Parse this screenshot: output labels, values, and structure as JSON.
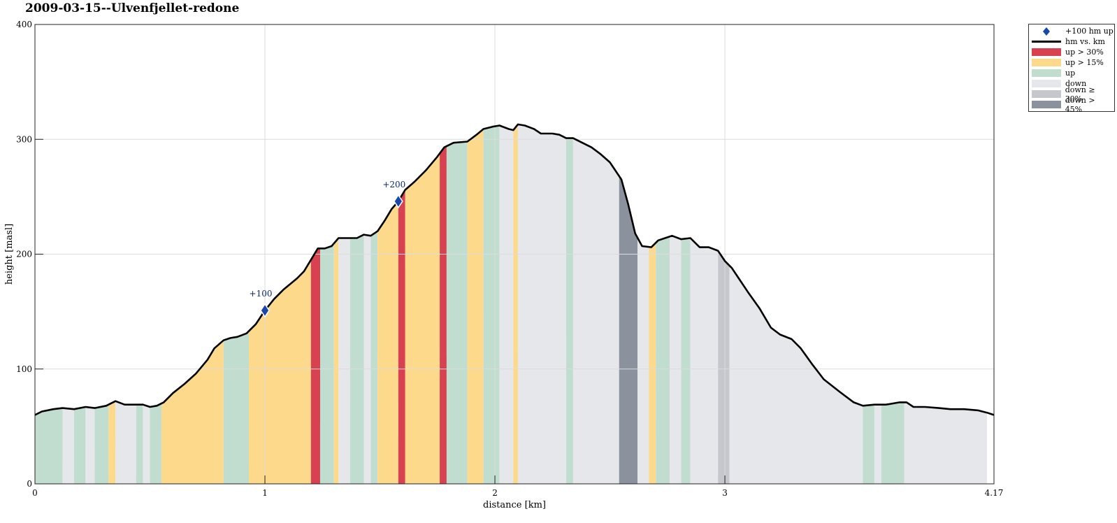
{
  "title": "2009-03-15--Ulvenfjellet-redone",
  "chart_data": {
    "type": "area",
    "title": "2009-03-15--Ulvenfjellet-redone",
    "xlabel": "distance [km]",
    "ylabel": "height [masl]",
    "xlim": [
      0,
      4.17
    ],
    "ylim": [
      0,
      400
    ],
    "xticks": [
      0,
      1,
      2,
      3,
      4.17
    ],
    "xtick_labels": [
      "0",
      "1",
      "2",
      "3",
      "4.17"
    ],
    "yticks": [
      0,
      100,
      200,
      300,
      400
    ],
    "ytick_labels": [
      "0",
      "100",
      "200",
      "300",
      "400"
    ],
    "grid": true,
    "legend_position": "outside top-right",
    "legend": [
      {
        "key": "marker",
        "label": "+100 hm up",
        "color": "#1548a8"
      },
      {
        "key": "line",
        "label": "hm vs. km",
        "color": "#000000"
      },
      {
        "key": "up30",
        "label": "up > 30%",
        "color": "#d8414f"
      },
      {
        "key": "up15",
        "label": "up > 15%",
        "color": "#fdd98b"
      },
      {
        "key": "up",
        "label": "up",
        "color": "#c1ddcf"
      },
      {
        "key": "down",
        "label": "down",
        "color": "#e6e7ea"
      },
      {
        "key": "down30",
        "label": "down ≥ 30%",
        "color": "#c5c7cd"
      },
      {
        "key": "down45",
        "label": "down > 45%",
        "color": "#8c919e"
      }
    ],
    "profile": [
      [
        0,
        60
      ],
      [
        0.03,
        63
      ],
      [
        0.08,
        65
      ],
      [
        0.12,
        66
      ],
      [
        0.17,
        65
      ],
      [
        0.22,
        67
      ],
      [
        0.26,
        66
      ],
      [
        0.31,
        68
      ],
      [
        0.35,
        72
      ],
      [
        0.39,
        69
      ],
      [
        0.42,
        69
      ],
      [
        0.47,
        69
      ],
      [
        0.5,
        67
      ],
      [
        0.53,
        68
      ],
      [
        0.56,
        71
      ],
      [
        0.6,
        79
      ],
      [
        0.65,
        87
      ],
      [
        0.7,
        96
      ],
      [
        0.75,
        108
      ],
      [
        0.78,
        118
      ],
      [
        0.82,
        125
      ],
      [
        0.85,
        127
      ],
      [
        0.88,
        128
      ],
      [
        0.92,
        131
      ],
      [
        0.96,
        139
      ],
      [
        1.0,
        151
      ],
      [
        1.04,
        161
      ],
      [
        1.08,
        169
      ],
      [
        1.14,
        179
      ],
      [
        1.17,
        185
      ],
      [
        1.2,
        195
      ],
      [
        1.23,
        205
      ],
      [
        1.26,
        205
      ],
      [
        1.29,
        207
      ],
      [
        1.32,
        214
      ],
      [
        1.35,
        214
      ],
      [
        1.4,
        214
      ],
      [
        1.43,
        217
      ],
      [
        1.46,
        216
      ],
      [
        1.49,
        220
      ],
      [
        1.52,
        229
      ],
      [
        1.55,
        239
      ],
      [
        1.58,
        246
      ],
      [
        1.61,
        256
      ],
      [
        1.65,
        263
      ],
      [
        1.7,
        273
      ],
      [
        1.75,
        285
      ],
      [
        1.78,
        293
      ],
      [
        1.82,
        297
      ],
      [
        1.88,
        298
      ],
      [
        1.92,
        304
      ],
      [
        1.95,
        309
      ],
      [
        1.99,
        311
      ],
      [
        2.02,
        312
      ],
      [
        2.06,
        309
      ],
      [
        2.08,
        308
      ],
      [
        2.1,
        313
      ],
      [
        2.13,
        312
      ],
      [
        2.17,
        309
      ],
      [
        2.2,
        305
      ],
      [
        2.25,
        305
      ],
      [
        2.28,
        304
      ],
      [
        2.31,
        301
      ],
      [
        2.34,
        301
      ],
      [
        2.38,
        297
      ],
      [
        2.42,
        293
      ],
      [
        2.46,
        287
      ],
      [
        2.5,
        280
      ],
      [
        2.55,
        265
      ],
      [
        2.58,
        243
      ],
      [
        2.61,
        218
      ],
      [
        2.64,
        207
      ],
      [
        2.68,
        206
      ],
      [
        2.71,
        212
      ],
      [
        2.74,
        214
      ],
      [
        2.77,
        216
      ],
      [
        2.81,
        213
      ],
      [
        2.85,
        214
      ],
      [
        2.89,
        206
      ],
      [
        2.93,
        206
      ],
      [
        2.97,
        203
      ],
      [
        3.0,
        194
      ],
      [
        3.03,
        188
      ],
      [
        3.06,
        179
      ],
      [
        3.1,
        167
      ],
      [
        3.15,
        153
      ],
      [
        3.2,
        136
      ],
      [
        3.24,
        130
      ],
      [
        3.29,
        126
      ],
      [
        3.33,
        118
      ],
      [
        3.38,
        104
      ],
      [
        3.43,
        91
      ],
      [
        3.5,
        80
      ],
      [
        3.56,
        71
      ],
      [
        3.6,
        68
      ],
      [
        3.65,
        69
      ],
      [
        3.7,
        69
      ],
      [
        3.76,
        71
      ],
      [
        3.79,
        71
      ],
      [
        3.82,
        67
      ],
      [
        3.87,
        67
      ],
      [
        3.93,
        66
      ],
      [
        3.98,
        65
      ],
      [
        4.04,
        65
      ],
      [
        4.1,
        64
      ],
      [
        4.14,
        62
      ],
      [
        4.17,
        60
      ]
    ],
    "segments": [
      [
        0,
        0.12,
        "up"
      ],
      [
        0.12,
        0.17,
        "down"
      ],
      [
        0.17,
        0.22,
        "up"
      ],
      [
        0.22,
        0.26,
        "down"
      ],
      [
        0.26,
        0.32,
        "up"
      ],
      [
        0.32,
        0.35,
        "up15"
      ],
      [
        0.35,
        0.44,
        "down"
      ],
      [
        0.44,
        0.47,
        "up"
      ],
      [
        0.47,
        0.5,
        "down"
      ],
      [
        0.5,
        0.55,
        "up"
      ],
      [
        0.55,
        0.82,
        "up15"
      ],
      [
        0.82,
        0.93,
        "up"
      ],
      [
        0.93,
        1.2,
        "up15"
      ],
      [
        1.2,
        1.24,
        "up30"
      ],
      [
        1.24,
        1.3,
        "up"
      ],
      [
        1.3,
        1.32,
        "up15"
      ],
      [
        1.32,
        1.37,
        "down"
      ],
      [
        1.37,
        1.43,
        "up"
      ],
      [
        1.43,
        1.46,
        "down"
      ],
      [
        1.46,
        1.49,
        "up"
      ],
      [
        1.49,
        1.58,
        "up15"
      ],
      [
        1.58,
        1.61,
        "up30"
      ],
      [
        1.61,
        1.76,
        "up15"
      ],
      [
        1.76,
        1.79,
        "up30"
      ],
      [
        1.79,
        1.88,
        "up"
      ],
      [
        1.88,
        1.95,
        "up15"
      ],
      [
        1.95,
        2.02,
        "up"
      ],
      [
        2.02,
        2.08,
        "down"
      ],
      [
        2.08,
        2.1,
        "up15"
      ],
      [
        2.1,
        2.31,
        "down"
      ],
      [
        2.31,
        2.34,
        "up"
      ],
      [
        2.34,
        2.54,
        "down"
      ],
      [
        2.54,
        2.62,
        "down45"
      ],
      [
        2.62,
        2.67,
        "down"
      ],
      [
        2.67,
        2.7,
        "up15"
      ],
      [
        2.7,
        2.76,
        "up"
      ],
      [
        2.76,
        2.81,
        "down"
      ],
      [
        2.81,
        2.85,
        "up"
      ],
      [
        2.85,
        2.97,
        "down"
      ],
      [
        2.97,
        3.02,
        "down30"
      ],
      [
        3.02,
        3.6,
        "down"
      ],
      [
        3.6,
        3.65,
        "up"
      ],
      [
        3.65,
        3.68,
        "down"
      ],
      [
        3.68,
        3.78,
        "up"
      ],
      [
        3.78,
        4.14,
        "down"
      ]
    ],
    "markers": [
      {
        "x": 1.0,
        "y": 151,
        "label": "+100"
      },
      {
        "x": 1.58,
        "y": 246,
        "label": "+200"
      }
    ]
  }
}
